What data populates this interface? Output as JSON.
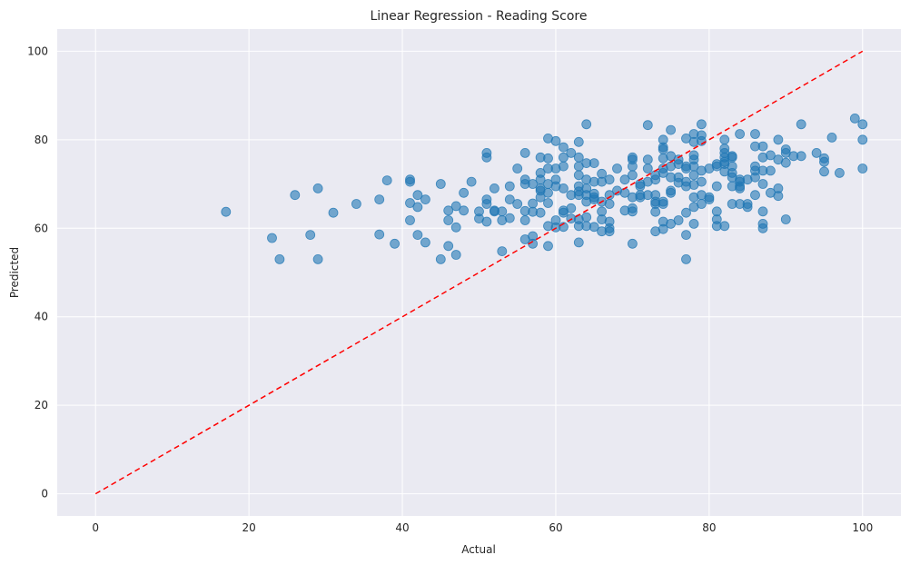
{
  "chart_data": {
    "type": "scatter",
    "title": "Linear Regression - Reading Score",
    "xlabel": "Actual",
    "ylabel": "Predicted",
    "xlim": [
      -5,
      105
    ],
    "ylim": [
      -5,
      105
    ],
    "xticks": [
      0,
      20,
      40,
      60,
      80,
      100
    ],
    "yticks": [
      0,
      20,
      40,
      60,
      80,
      100
    ],
    "grid": true,
    "background": "#eaeaf2",
    "point_color": "#1f77b4",
    "point_alpha": 0.6,
    "reference_line": {
      "from": [
        0,
        0
      ],
      "to": [
        100,
        100
      ],
      "color": "#ff0000",
      "style": "dashed"
    },
    "points": [
      [
        17,
        63.7
      ],
      [
        23,
        57.8
      ],
      [
        24,
        53
      ],
      [
        26,
        67.5
      ],
      [
        28,
        58.5
      ],
      [
        29,
        69
      ],
      [
        29,
        53
      ],
      [
        31,
        63.5
      ],
      [
        34,
        65.5
      ],
      [
        37,
        66.5
      ],
      [
        37,
        58.6
      ],
      [
        38,
        70.8
      ],
      [
        39,
        56.5
      ],
      [
        41,
        71
      ],
      [
        41,
        70.5
      ],
      [
        41,
        65.7
      ],
      [
        41,
        61.8
      ],
      [
        42,
        67.5
      ],
      [
        42,
        64.8
      ],
      [
        42,
        58.5
      ],
      [
        43,
        66.5
      ],
      [
        43,
        56.8
      ],
      [
        45,
        70
      ],
      [
        45,
        53
      ],
      [
        46,
        64
      ],
      [
        46,
        61.8
      ],
      [
        46,
        56
      ],
      [
        47,
        65
      ],
      [
        47,
        60.2
      ],
      [
        47,
        54
      ],
      [
        48,
        68
      ],
      [
        48,
        64
      ],
      [
        49,
        70.5
      ],
      [
        50,
        63.8
      ],
      [
        50,
        62.2
      ],
      [
        51,
        77
      ],
      [
        51,
        76
      ],
      [
        51,
        66.5
      ],
      [
        51,
        65.5
      ],
      [
        51,
        61.5
      ],
      [
        52,
        69
      ],
      [
        52,
        64
      ],
      [
        52,
        63.8
      ],
      [
        53,
        63.8
      ],
      [
        53,
        61.8
      ],
      [
        53,
        54.8
      ],
      [
        54,
        69.5
      ],
      [
        54,
        66.5
      ],
      [
        54,
        62.3
      ],
      [
        55,
        73.5
      ],
      [
        55,
        65.5
      ],
      [
        56,
        77
      ],
      [
        56,
        71
      ],
      [
        56,
        70
      ],
      [
        56,
        63.9
      ],
      [
        56,
        61.8
      ],
      [
        56,
        57.5
      ],
      [
        57,
        70
      ],
      [
        57,
        65.6
      ],
      [
        57,
        63.7
      ],
      [
        57,
        58.2
      ],
      [
        57,
        56.5
      ],
      [
        58,
        76
      ],
      [
        58,
        72.5
      ],
      [
        58,
        71
      ],
      [
        58,
        69
      ],
      [
        58,
        68.5
      ],
      [
        58,
        67
      ],
      [
        58,
        63.5
      ],
      [
        59,
        80.3
      ],
      [
        59,
        75.8
      ],
      [
        59,
        73.5
      ],
      [
        59,
        70
      ],
      [
        59,
        68
      ],
      [
        59,
        65.7
      ],
      [
        59,
        60.5
      ],
      [
        59,
        56
      ],
      [
        60,
        79.7
      ],
      [
        60,
        73.5
      ],
      [
        60,
        71
      ],
      [
        60,
        69.5
      ],
      [
        60,
        61.8
      ],
      [
        60,
        60.2
      ],
      [
        61,
        78.3
      ],
      [
        61,
        76
      ],
      [
        61,
        74
      ],
      [
        61,
        69
      ],
      [
        61,
        64
      ],
      [
        61,
        63.5
      ],
      [
        61,
        60.3
      ],
      [
        62,
        77
      ],
      [
        62,
        67.5
      ],
      [
        62,
        64.5
      ],
      [
        62,
        62.2
      ],
      [
        63,
        79.5
      ],
      [
        63,
        76
      ],
      [
        63,
        74
      ],
      [
        63,
        72
      ],
      [
        63,
        69.5
      ],
      [
        63,
        68.3
      ],
      [
        63,
        67.5
      ],
      [
        63,
        62
      ],
      [
        63,
        60.5
      ],
      [
        63,
        56.8
      ],
      [
        64,
        83.5
      ],
      [
        64,
        74.7
      ],
      [
        64,
        71
      ],
      [
        64,
        69
      ],
      [
        64,
        67.5
      ],
      [
        64,
        66
      ],
      [
        64,
        62.5
      ],
      [
        64,
        60.5
      ],
      [
        65,
        74.7
      ],
      [
        65,
        70.5
      ],
      [
        65,
        67.8
      ],
      [
        65,
        67
      ],
      [
        65,
        66.5
      ],
      [
        65,
        60.3
      ],
      [
        66,
        72.3
      ],
      [
        66,
        70.5
      ],
      [
        66,
        66
      ],
      [
        66,
        63.8
      ],
      [
        66,
        62
      ],
      [
        66,
        59.3
      ],
      [
        67,
        71
      ],
      [
        67,
        67.5
      ],
      [
        67,
        65.5
      ],
      [
        67,
        61.5
      ],
      [
        67,
        60
      ],
      [
        67,
        59.3
      ],
      [
        68,
        73.5
      ],
      [
        68,
        68.5
      ],
      [
        69,
        68
      ],
      [
        69,
        64
      ],
      [
        69,
        71
      ],
      [
        70,
        76
      ],
      [
        70,
        75.5
      ],
      [
        70,
        74
      ],
      [
        70,
        72
      ],
      [
        70,
        67
      ],
      [
        70,
        64.5
      ],
      [
        70,
        63.8
      ],
      [
        70,
        56.5
      ],
      [
        71,
        70
      ],
      [
        71,
        69.5
      ],
      [
        71,
        67.5
      ],
      [
        71,
        67
      ],
      [
        72,
        83.3
      ],
      [
        72,
        75.5
      ],
      [
        72,
        73.5
      ],
      [
        72,
        70.5
      ],
      [
        72,
        67.5
      ],
      [
        73,
        72
      ],
      [
        73,
        71
      ],
      [
        73,
        67.5
      ],
      [
        73,
        66
      ],
      [
        73,
        65.5
      ],
      [
        73,
        63.7
      ],
      [
        73,
        59.3
      ],
      [
        74,
        80
      ],
      [
        74,
        78.3
      ],
      [
        74,
        77.8
      ],
      [
        74,
        75.8
      ],
      [
        74,
        73.5
      ],
      [
        74,
        72.5
      ],
      [
        74,
        66
      ],
      [
        74,
        65.5
      ],
      [
        74,
        61.5
      ],
      [
        74,
        59.8
      ],
      [
        75,
        82.2
      ],
      [
        75,
        76.3
      ],
      [
        75,
        74
      ],
      [
        75,
        71.5
      ],
      [
        75,
        68.5
      ],
      [
        75,
        68
      ],
      [
        75,
        61
      ],
      [
        76,
        75.5
      ],
      [
        76,
        74.5
      ],
      [
        76,
        71.5
      ],
      [
        76,
        70.3
      ],
      [
        76,
        61.8
      ],
      [
        77,
        80.3
      ],
      [
        77,
        74
      ],
      [
        77,
        73.5
      ],
      [
        77,
        70.5
      ],
      [
        77,
        69.5
      ],
      [
        77,
        63.5
      ],
      [
        77,
        58.5
      ],
      [
        77,
        53
      ],
      [
        78,
        81.3
      ],
      [
        78,
        79.5
      ],
      [
        78,
        76.5
      ],
      [
        78,
        75.5
      ],
      [
        78,
        74
      ],
      [
        78,
        72
      ],
      [
        78,
        69.8
      ],
      [
        78,
        67
      ],
      [
        78,
        64.8
      ],
      [
        78,
        61
      ],
      [
        79,
        83.5
      ],
      [
        79,
        81
      ],
      [
        79,
        79.7
      ],
      [
        79,
        73
      ],
      [
        79,
        70.5
      ],
      [
        79,
        67.5
      ],
      [
        79,
        65.5
      ],
      [
        80,
        73.5
      ],
      [
        80,
        67
      ],
      [
        80,
        66.5
      ],
      [
        81,
        74.5
      ],
      [
        81,
        74
      ],
      [
        81,
        69.5
      ],
      [
        81,
        63.8
      ],
      [
        81,
        62
      ],
      [
        81,
        60.5
      ],
      [
        82,
        80
      ],
      [
        82,
        78
      ],
      [
        82,
        77
      ],
      [
        82,
        76
      ],
      [
        82,
        75
      ],
      [
        82,
        74.5
      ],
      [
        82,
        72.8
      ],
      [
        82,
        60.5
      ],
      [
        83,
        76.3
      ],
      [
        83,
        76
      ],
      [
        83,
        74
      ],
      [
        83,
        72.5
      ],
      [
        83,
        71.5
      ],
      [
        83,
        69.5
      ],
      [
        83,
        65.5
      ],
      [
        84,
        81.3
      ],
      [
        84,
        71
      ],
      [
        84,
        70.5
      ],
      [
        84,
        69.5
      ],
      [
        84,
        69
      ],
      [
        84,
        65.5
      ],
      [
        85,
        71
      ],
      [
        85,
        65.5
      ],
      [
        85,
        64.8
      ],
      [
        86,
        81.3
      ],
      [
        86,
        78.5
      ],
      [
        86,
        74
      ],
      [
        86,
        73
      ],
      [
        86,
        71.5
      ],
      [
        86,
        67.5
      ],
      [
        87,
        78.5
      ],
      [
        87,
        76
      ],
      [
        87,
        73
      ],
      [
        87,
        70
      ],
      [
        87,
        63.8
      ],
      [
        87,
        61
      ],
      [
        87,
        60
      ],
      [
        88,
        76.5
      ],
      [
        88,
        73
      ],
      [
        88,
        68
      ],
      [
        89,
        80
      ],
      [
        89,
        75.5
      ],
      [
        89,
        69
      ],
      [
        89,
        67.3
      ],
      [
        90,
        77.8
      ],
      [
        90,
        77
      ],
      [
        90,
        74.8
      ],
      [
        90,
        62
      ],
      [
        91,
        76.3
      ],
      [
        92,
        83.5
      ],
      [
        92,
        76.3
      ],
      [
        94,
        77
      ],
      [
        95,
        75.8
      ],
      [
        95,
        75
      ],
      [
        95,
        72.8
      ],
      [
        96,
        80.5
      ],
      [
        97,
        72.5
      ],
      [
        99,
        84.8
      ],
      [
        100,
        83.5
      ],
      [
        100,
        80
      ],
      [
        100,
        73.5
      ]
    ]
  }
}
